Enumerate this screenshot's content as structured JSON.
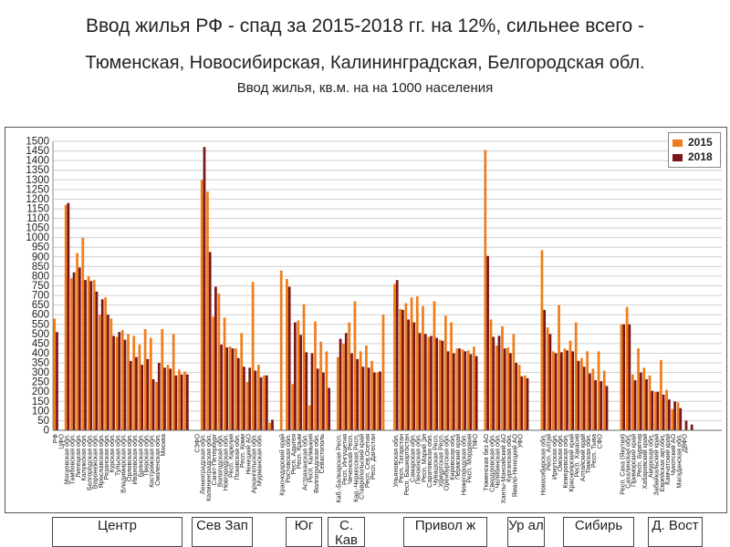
{
  "title_line1": "Ввод жилья РФ - спад за 2015-2018 гг. на 12%, сильнее всего -",
  "title_line2": "Тюменская, Новосибирская, Калининградская, Белгородская обл.",
  "subtitle": "Ввод жилья, кв.м. на на 1000 населения",
  "colors": {
    "y2015": "#f07d1c",
    "y2018": "#7a1616",
    "grid": "#cfcfcf"
  },
  "chart_data": {
    "type": "bar",
    "ylim": [
      0,
      1500
    ],
    "yticks": [
      0,
      50,
      100,
      150,
      200,
      250,
      300,
      350,
      400,
      450,
      500,
      550,
      600,
      650,
      700,
      750,
      800,
      850,
      900,
      950,
      1000,
      1050,
      1100,
      1150,
      1200,
      1250,
      1300,
      1350,
      1400,
      1450,
      1500
    ],
    "grid": true,
    "legend_position": "top-right",
    "series": [
      {
        "name": "2015",
        "values": [
          580,
          0,
          1170,
          790,
          920,
          1000,
          800,
          780,
          600,
          690,
          580,
          485,
          520,
          500,
          490,
          445,
          525,
          480,
          250,
          525,
          340,
          500,
          315,
          305,
          0,
          0,
          1300,
          1240,
          590,
          710,
          585,
          435,
          425,
          505,
          250,
          770,
          340,
          285,
          40,
          0,
          830,
          785,
          240,
          570,
          655,
          130,
          565,
          460,
          410,
          0,
          380,
          450,
          560,
          670,
          410,
          440,
          360,
          300,
          600,
          0,
          760,
          630,
          660,
          690,
          695,
          645,
          485,
          670,
          470,
          595,
          560,
          425,
          420,
          415,
          435,
          0,
          1455,
          575,
          440,
          540,
          430,
          500,
          340,
          285,
          0,
          0,
          935,
          535,
          410,
          650,
          425,
          465,
          560,
          375,
          410,
          320,
          410,
          310,
          0,
          0,
          550,
          640,
          290,
          425,
          325,
          285,
          200,
          365,
          210,
          110,
          145,
          0,
          0,
          0,
          0,
          0,
          0,
          0
        ]
      },
      {
        "name": "2018",
        "values": [
          510,
          0,
          1180,
          820,
          845,
          780,
          775,
          720,
          680,
          600,
          490,
          510,
          470,
          360,
          380,
          340,
          370,
          265,
          350,
          325,
          320,
          285,
          290,
          290,
          0,
          0,
          1470,
          925,
          745,
          445,
          430,
          425,
          375,
          330,
          325,
          310,
          275,
          285,
          55,
          0,
          0,
          745,
          560,
          495,
          405,
          400,
          320,
          300,
          220,
          0,
          475,
          505,
          400,
          370,
          330,
          325,
          300,
          305,
          0,
          0,
          780,
          625,
          575,
          560,
          505,
          500,
          490,
          480,
          465,
          410,
          400,
          425,
          410,
          395,
          385,
          0,
          905,
          485,
          490,
          425,
          400,
          350,
          280,
          270,
          0,
          0,
          625,
          500,
          400,
          405,
          415,
          410,
          360,
          330,
          295,
          260,
          255,
          230,
          0,
          0,
          550,
          550,
          260,
          300,
          265,
          205,
          200,
          185,
          160,
          150,
          115,
          50,
          30,
          0,
          0,
          0,
          0,
          0
        ]
      }
    ],
    "categories": [
      "РФ",
      "ЦФО",
      "Московская обл.",
      "Тамбовская обл.",
      "Липецкая обл.",
      "Калужская обл.",
      "Белгородская обл.",
      "Воронежская обл.",
      "Ярославская обл.",
      "Рязанская обл.",
      "Курская обл.",
      "Тульская обл.",
      "Владимирская обл.",
      "Орловская обл.",
      "Ивановская обл.",
      "Брянская обл.",
      "Тверская обл.",
      "Костромская обл.",
      "Смоленская обл.",
      "Москва",
      "",
      "",
      "",
      "",
      "",
      "СЗФО",
      "Ленинградская обл.",
      "Калининградская обл.",
      "Санкт-Петербург",
      "Вологодская обл.",
      "Новгородская обл.",
      "Респ. Карелия",
      "Псковская обл.",
      "Респ. Коми",
      "Ненецкий АО",
      "Архангельская обл.",
      "Мурманская обл.",
      "",
      "",
      "",
      "Краснодарский край",
      "Ростовская обл.",
      "Респ. Адыгея",
      "Респ. Крым",
      "Астраханская обл.",
      "Респ. Калмыкия",
      "Волгоградская обл.",
      "Севастополь",
      "",
      "",
      "Каб.-Балкарская Респ.",
      "Респ. Ингушетия",
      "Чеченская Респ.",
      "Кар.-Черкесская Респ.",
      "Ставропольский край",
      "Респ. Сев.Осетия",
      "Респ. Дагестан",
      "",
      "",
      "",
      "Ульяновская обл.",
      "Респ. Татарстан",
      "Респ. Башкортостан",
      "Самарская обл.",
      "Пензенская обл.",
      "Респ. Марий Эл",
      "Саратовская обл.",
      "Чувашская Респ.",
      "Удмуртская Респ.",
      "Оренбургская обл.",
      "Кировская обл.",
      "Пермский край",
      "Нижегородская обл.",
      "Респ. Мордовия",
      "ПФО",
      "",
      "Тюменская без АО",
      "Свердловская обл.",
      "Челябинская обл.",
      "Ханты-Мансийский АО",
      "Курганская обл.",
      "Ямало-Ненецкий АО",
      "УФО",
      "",
      "",
      "",
      "Новосибирская обл.",
      "Респ. Алтай",
      "Иркутская обл.",
      "Омская обл.",
      "Кемеровская обл.",
      "Красноярский край",
      "Респ. Хакасия",
      "Алтайский край",
      "Томская обл.",
      "Респ. Тыва",
      "СФО",
      "",
      "",
      "",
      "Респ. Саха (Якутия)",
      "Сахалинская обл.",
      "Приморский край",
      "Респ. Бурятия",
      "Хабаровский край",
      "Амурская обл.",
      "Забайкальский край",
      "Еврейская авт.обл.",
      "Камчатский край",
      "Чукотский АО",
      "Магаданская обл.",
      "ДВФО",
      "",
      "",
      "",
      "",
      "",
      ""
    ]
  },
  "districts": [
    "Центр",
    "Сев Зап",
    "Юг",
    "С. Кав",
    "Привол ж",
    "Ур ал",
    "Сибирь",
    "Д. Вост"
  ]
}
